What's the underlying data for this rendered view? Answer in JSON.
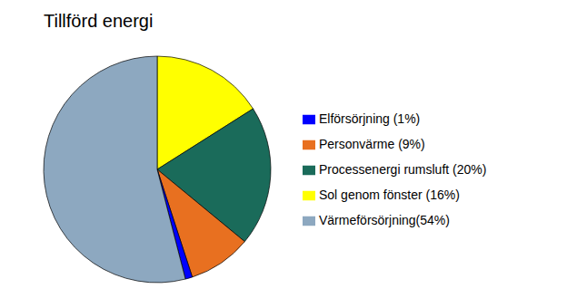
{
  "chart_data": {
    "type": "pie",
    "title": "Tillförd energi",
    "categories": [
      "Sol genom fönster (16%)",
      "Processenergi rumsluft (20%)",
      "Personvärme (9%)",
      "Elförsörjning (1%)",
      "Värmeförsörjning(54%)"
    ],
    "values": [
      16,
      20,
      9,
      1,
      54
    ],
    "colors": [
      "#FFFF00",
      "#1A6B5A",
      "#E87020",
      "#0000FF",
      "#8DA8C0"
    ],
    "legend": "right"
  }
}
